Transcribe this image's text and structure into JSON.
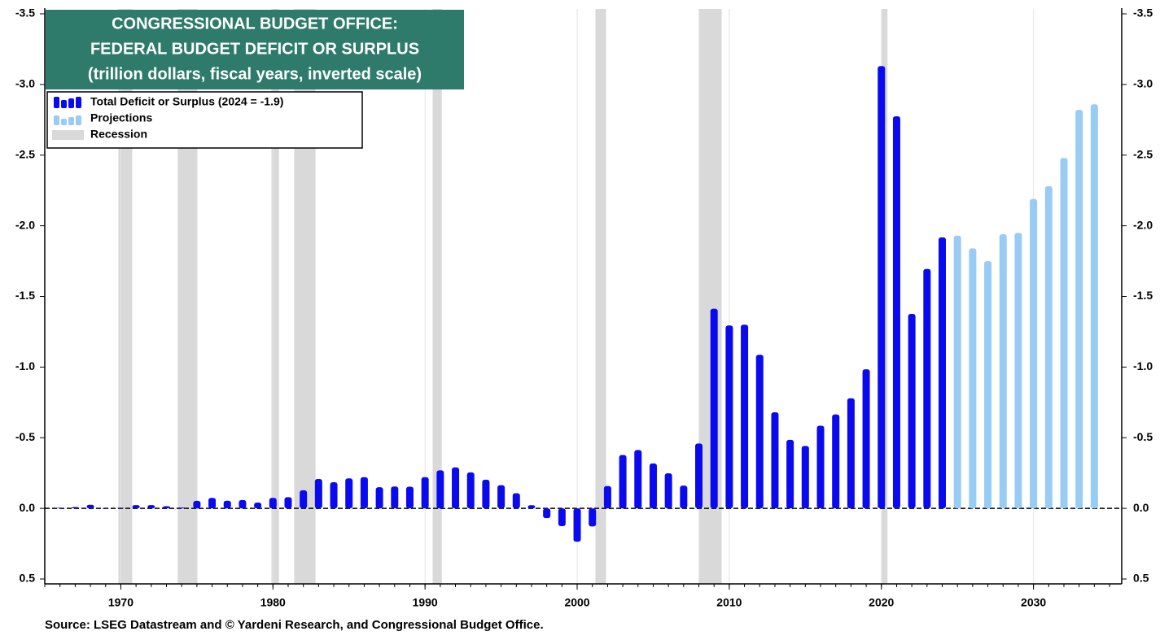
{
  "chart_data": {
    "type": "bar",
    "title": [
      "CONGRESSIONAL BUDGET OFFICE:",
      "FEDERAL BUDGET DEFICIT OR SURPLUS",
      "(trillion dollars, fiscal years, inverted scale)"
    ],
    "source": "Source: LSEG Datastream and © Yardeni Research, and Congressional Budget Office.",
    "inverted": true,
    "xlim": [
      1965,
      2035.8
    ],
    "xticks": [
      1970,
      1980,
      1990,
      2000,
      2010,
      2020,
      2030
    ],
    "ylim": [
      -3.5,
      0.5
    ],
    "yticks": [
      -3.5,
      {
        "value": -3,
        "label": "-3.0"
      },
      -2.5,
      {
        "value": -2,
        "label": "-2.0"
      },
      -1.5,
      {
        "value": -1,
        "label": "-1.0"
      },
      -0.5,
      {
        "value": 0,
        "label": "0.0"
      },
      0.5
    ],
    "series": [
      {
        "name": "Total Deficit or Surplus (2024 = -1.9)",
        "color": "#0a0af0",
        "x": [
          1966,
          1967,
          1968,
          1969,
          1970,
          1971,
          1972,
          1973,
          1974,
          1975,
          1976,
          1977,
          1978,
          1979,
          1980,
          1981,
          1982,
          1983,
          1984,
          1985,
          1986,
          1987,
          1988,
          1989,
          1990,
          1991,
          1992,
          1993,
          1994,
          1995,
          1996,
          1997,
          1998,
          1999,
          2000,
          2001,
          2002,
          2003,
          2004,
          2005,
          2006,
          2007,
          2008,
          2009,
          2010,
          2011,
          2012,
          2013,
          2014,
          2015,
          2016,
          2017,
          2018,
          2019,
          2020,
          2021,
          2022,
          2023,
          2024
        ],
        "values": [
          -0.004,
          -0.009,
          -0.025,
          0.003,
          -0.003,
          -0.023,
          -0.023,
          -0.015,
          -0.006,
          -0.053,
          -0.074,
          -0.054,
          -0.059,
          -0.041,
          -0.074,
          -0.079,
          -0.128,
          -0.208,
          -0.185,
          -0.212,
          -0.221,
          -0.15,
          -0.155,
          -0.153,
          -0.221,
          -0.269,
          -0.29,
          -0.255,
          -0.203,
          -0.164,
          -0.107,
          -0.022,
          0.069,
          0.126,
          0.236,
          0.128,
          -0.158,
          -0.378,
          -0.413,
          -0.318,
          -0.248,
          -0.161,
          -0.459,
          -1.413,
          -1.294,
          -1.3,
          -1.087,
          -0.68,
          -0.485,
          -0.442,
          -0.585,
          -0.665,
          -0.779,
          -0.984,
          -3.13,
          -2.775,
          -1.376,
          -1.694,
          -1.918
        ]
      },
      {
        "name": "Projections",
        "color": "#99ccf5",
        "x": [
          2025,
          2026,
          2027,
          2028,
          2029,
          2030,
          2031,
          2032,
          2033,
          2034
        ],
        "values": [
          -1.93,
          -1.84,
          -1.75,
          -1.94,
          -1.95,
          -2.19,
          -2.28,
          -2.48,
          -2.82,
          -2.86
        ]
      }
    ],
    "recession": {
      "name": "Recession",
      "color": "#d9d9d9",
      "periods": [
        [
          1969.84,
          1970.75
        ],
        [
          1973.74,
          1975.03
        ],
        [
          1979.9,
          1980.4
        ],
        [
          1981.4,
          1982.8
        ],
        [
          1990.5,
          1991.1
        ],
        [
          2001.2,
          2001.9
        ],
        [
          2008.0,
          2009.5
        ],
        [
          2020.0,
          2020.4
        ]
      ]
    }
  }
}
